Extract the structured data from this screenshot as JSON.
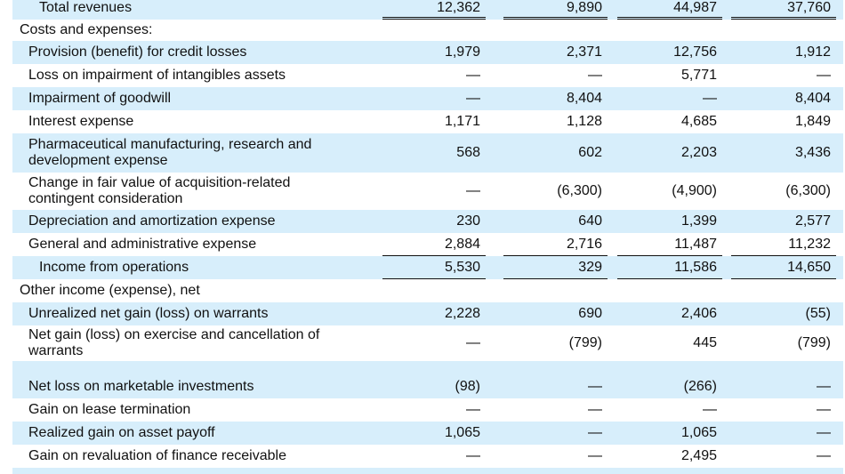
{
  "statement": {
    "rows": [
      {
        "label": "Total revenues",
        "values": [
          "12,362",
          "9,890",
          "44,987",
          "37,760"
        ]
      },
      {
        "label": "Costs and expenses:",
        "values": []
      },
      {
        "label": "Provision (benefit) for credit losses",
        "values": [
          "1,979",
          "2,371",
          "12,756",
          "1,912"
        ]
      },
      {
        "label": "Loss on impairment of intangibles assets",
        "values": [
          "—",
          "—",
          "5,771",
          "—"
        ]
      },
      {
        "label": "Impairment of goodwill",
        "values": [
          "—",
          "8,404",
          "—",
          "8,404"
        ]
      },
      {
        "label": "Interest expense",
        "values": [
          "1,171",
          "1,128",
          "4,685",
          "1,849"
        ]
      },
      {
        "label": "Pharmaceutical manufacturing, research and development expense",
        "label_lines": [
          "Pharmaceutical manufacturing, research and",
          "development expense"
        ],
        "values": [
          "568",
          "602",
          "2,203",
          "3,436"
        ]
      },
      {
        "label": "Change in fair value of acquisition-related contingent consideration",
        "label_lines": [
          "Change in fair value of acquisition-related",
          "contingent consideration"
        ],
        "values": [
          "—",
          "(6,300)",
          "(4,900)",
          "(6,300)"
        ]
      },
      {
        "label": "Depreciation and amortization expense",
        "values": [
          "230",
          "640",
          "1,399",
          "2,577"
        ]
      },
      {
        "label": "General and administrative expense",
        "values": [
          "2,884",
          "2,716",
          "11,487",
          "11,232"
        ]
      },
      {
        "label": "Income from operations",
        "values": [
          "5,530",
          "329",
          "11,586",
          "14,650"
        ]
      },
      {
        "label": "Other income (expense), net",
        "values": []
      },
      {
        "label": "Unrealized net gain (loss) on warrants",
        "values": [
          "2,228",
          "690",
          "2,406",
          "(55)"
        ]
      },
      {
        "label": "Net gain (loss) on exercise and cancellation of warrants",
        "label_lines": [
          "Net gain (loss) on exercise and cancellation of",
          "warrants"
        ],
        "values": [
          "—",
          "(799)",
          "445",
          "(799)"
        ]
      },
      {
        "label": "Net loss on marketable investments",
        "values": [
          "(98)",
          "—",
          "(266)",
          "—"
        ]
      },
      {
        "label": "Gain on lease termination",
        "values": [
          "—",
          "—",
          "—",
          "—"
        ]
      },
      {
        "label": "Realized gain on asset payoff",
        "values": [
          "1,065",
          "—",
          "1,065",
          "—"
        ]
      },
      {
        "label": "Gain on revaluation of finance receivable",
        "values": [
          "—",
          "—",
          "2,495",
          "—"
        ]
      }
    ]
  },
  "colors": {
    "band": "#d7eefb",
    "text": "#111111",
    "rule": "#111111"
  }
}
